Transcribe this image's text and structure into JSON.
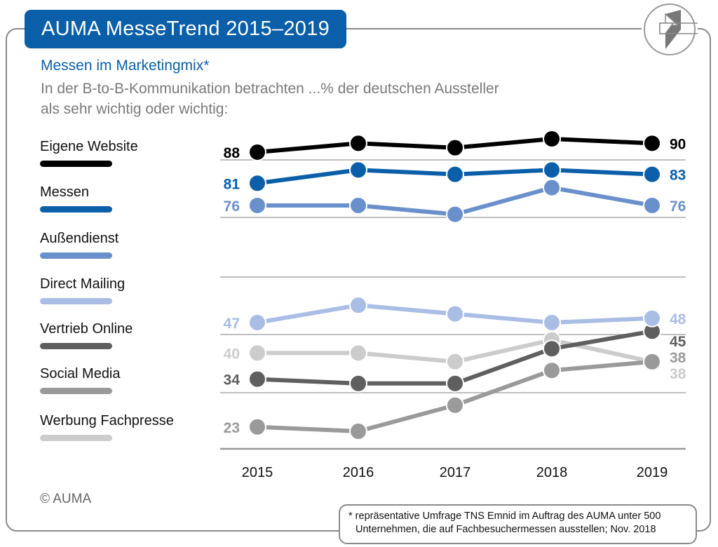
{
  "header": {
    "title": "AUMA MesseTrend 2015–2019"
  },
  "subtitle": "Messen im Marketingmix*",
  "description_line1": "In der B-to-B-Kommunikation betrachten ...% der deutschen Aussteller",
  "description_line2": "als sehr wichtig oder wichtig:",
  "copyright": "© AUMA",
  "footnote": {
    "line1": "* repräsentative Umfrage TNS Emnid im Auftrag des AUMA unter 500",
    "line2": "Unternehmen, die auf Fachbesuchermessen ausstellen; Nov. 2018"
  },
  "logo": {
    "icon": "auma-logo"
  },
  "chart_data": {
    "type": "line",
    "title": "Messen im Marketingmix*",
    "x": [
      "2015",
      "2016",
      "2017",
      "2018",
      "2019"
    ],
    "axis_break": true,
    "grid": true,
    "legend_placement": "left",
    "series": [
      {
        "name": "Eigene Website",
        "color": "#000000",
        "values": [
          88,
          90,
          89,
          91,
          90
        ],
        "labels": {
          "first": "88",
          "last": "90"
        }
      },
      {
        "name": "Messen",
        "color": "#0a5fa8",
        "values": [
          81,
          84,
          83,
          84,
          83
        ],
        "labels": {
          "first": "81",
          "last": "83"
        }
      },
      {
        "name": "Außendienst",
        "color": "#6a90cc",
        "values": [
          76,
          76,
          74,
          80,
          76
        ],
        "labels": {
          "first": "76",
          "last": "76"
        }
      },
      {
        "name": "Direct Mailing",
        "color": "#aabde5",
        "values": [
          47,
          51,
          49,
          47,
          48
        ],
        "labels": {
          "first": "47",
          "last": "48"
        }
      },
      {
        "name": "Vertrieb Online",
        "color": "#5f5f5f",
        "values": [
          34,
          33,
          33,
          41,
          45
        ],
        "labels": {
          "first": "34",
          "last": "45"
        }
      },
      {
        "name": "Social Media",
        "color": "#9a9a9a",
        "values": [
          23,
          22,
          28,
          36,
          38
        ],
        "labels": {
          "first": "23",
          "last": "38"
        }
      },
      {
        "name": "Werbung Fachpresse",
        "color": "#cccccc",
        "values": [
          40,
          40,
          38,
          43,
          38
        ],
        "labels": {
          "first": "40",
          "last": "38"
        }
      }
    ]
  }
}
